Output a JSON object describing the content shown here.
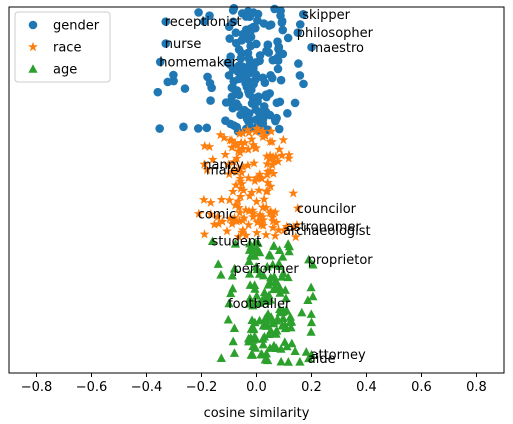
{
  "chart_data": {
    "type": "scatter",
    "xlabel": "cosine similarity",
    "xlim": [
      -0.9,
      0.9
    ],
    "xticks": [
      -0.8,
      -0.6,
      -0.4,
      -0.2,
      0.0,
      0.2,
      0.4,
      0.6,
      0.8
    ],
    "xtick_labels": [
      "−0.8",
      "−0.6",
      "−0.4",
      "−0.2",
      "0.0",
      "0.2",
      "0.4",
      "0.6",
      "0.8"
    ],
    "y_axis_ticks": "none",
    "grid": false,
    "legend_position": "top-left",
    "series": [
      {
        "name": "gender",
        "marker": "circle",
        "color": "#1f77b4",
        "cluster": {
          "count": 170,
          "x_range": [
            -0.36,
            0.2
          ],
          "core_x_range": [
            -0.1,
            0.1
          ],
          "y_range": [
            0.66,
            1.0
          ]
        },
        "labeled_points": [
          {
            "label": "skipper",
            "x": 0.17,
            "y": 0.98
          },
          {
            "label": "receptionist",
            "x": -0.33,
            "y": 0.96
          },
          {
            "label": "philosopher",
            "x": 0.15,
            "y": 0.93
          },
          {
            "label": "nurse",
            "x": -0.33,
            "y": 0.9
          },
          {
            "label": "maestro",
            "x": 0.2,
            "y": 0.89
          },
          {
            "label": "homemaker",
            "x": -0.35,
            "y": 0.85
          }
        ]
      },
      {
        "name": "race",
        "marker": "star",
        "color": "#ff7f0e",
        "cluster": {
          "count": 150,
          "x_range": [
            -0.2,
            0.15
          ],
          "core_x_range": [
            -0.1,
            0.07
          ],
          "y_range": [
            0.37,
            0.67
          ]
        },
        "labeled_points": [
          {
            "label": "nanny",
            "x": -0.19,
            "y": 0.57
          },
          {
            "label": "male",
            "x": -0.18,
            "y": 0.555
          },
          {
            "label": "councilor",
            "x": 0.15,
            "y": 0.45
          },
          {
            "label": "comic",
            "x": -0.21,
            "y": 0.435
          },
          {
            "label": "astronomer",
            "x": 0.11,
            "y": 0.4
          },
          {
            "label": "archaeologist",
            "x": 0.1,
            "y": 0.39
          }
        ]
      },
      {
        "name": "age",
        "marker": "triangle",
        "color": "#2ca02c",
        "cluster": {
          "count": 150,
          "x_range": [
            -0.15,
            0.21
          ],
          "core_x_range": [
            -0.03,
            0.13
          ],
          "y_range": [
            0.03,
            0.36
          ]
        },
        "labeled_points": [
          {
            "label": "student",
            "x": -0.16,
            "y": 0.36
          },
          {
            "label": "proprietor",
            "x": 0.19,
            "y": 0.31
          },
          {
            "label": "performer",
            "x": -0.08,
            "y": 0.285
          },
          {
            "label": "footballer",
            "x": -0.1,
            "y": 0.19
          },
          {
            "label": "attorney",
            "x": 0.2,
            "y": 0.05
          },
          {
            "label": "aide",
            "x": 0.19,
            "y": 0.04
          }
        ]
      }
    ]
  }
}
